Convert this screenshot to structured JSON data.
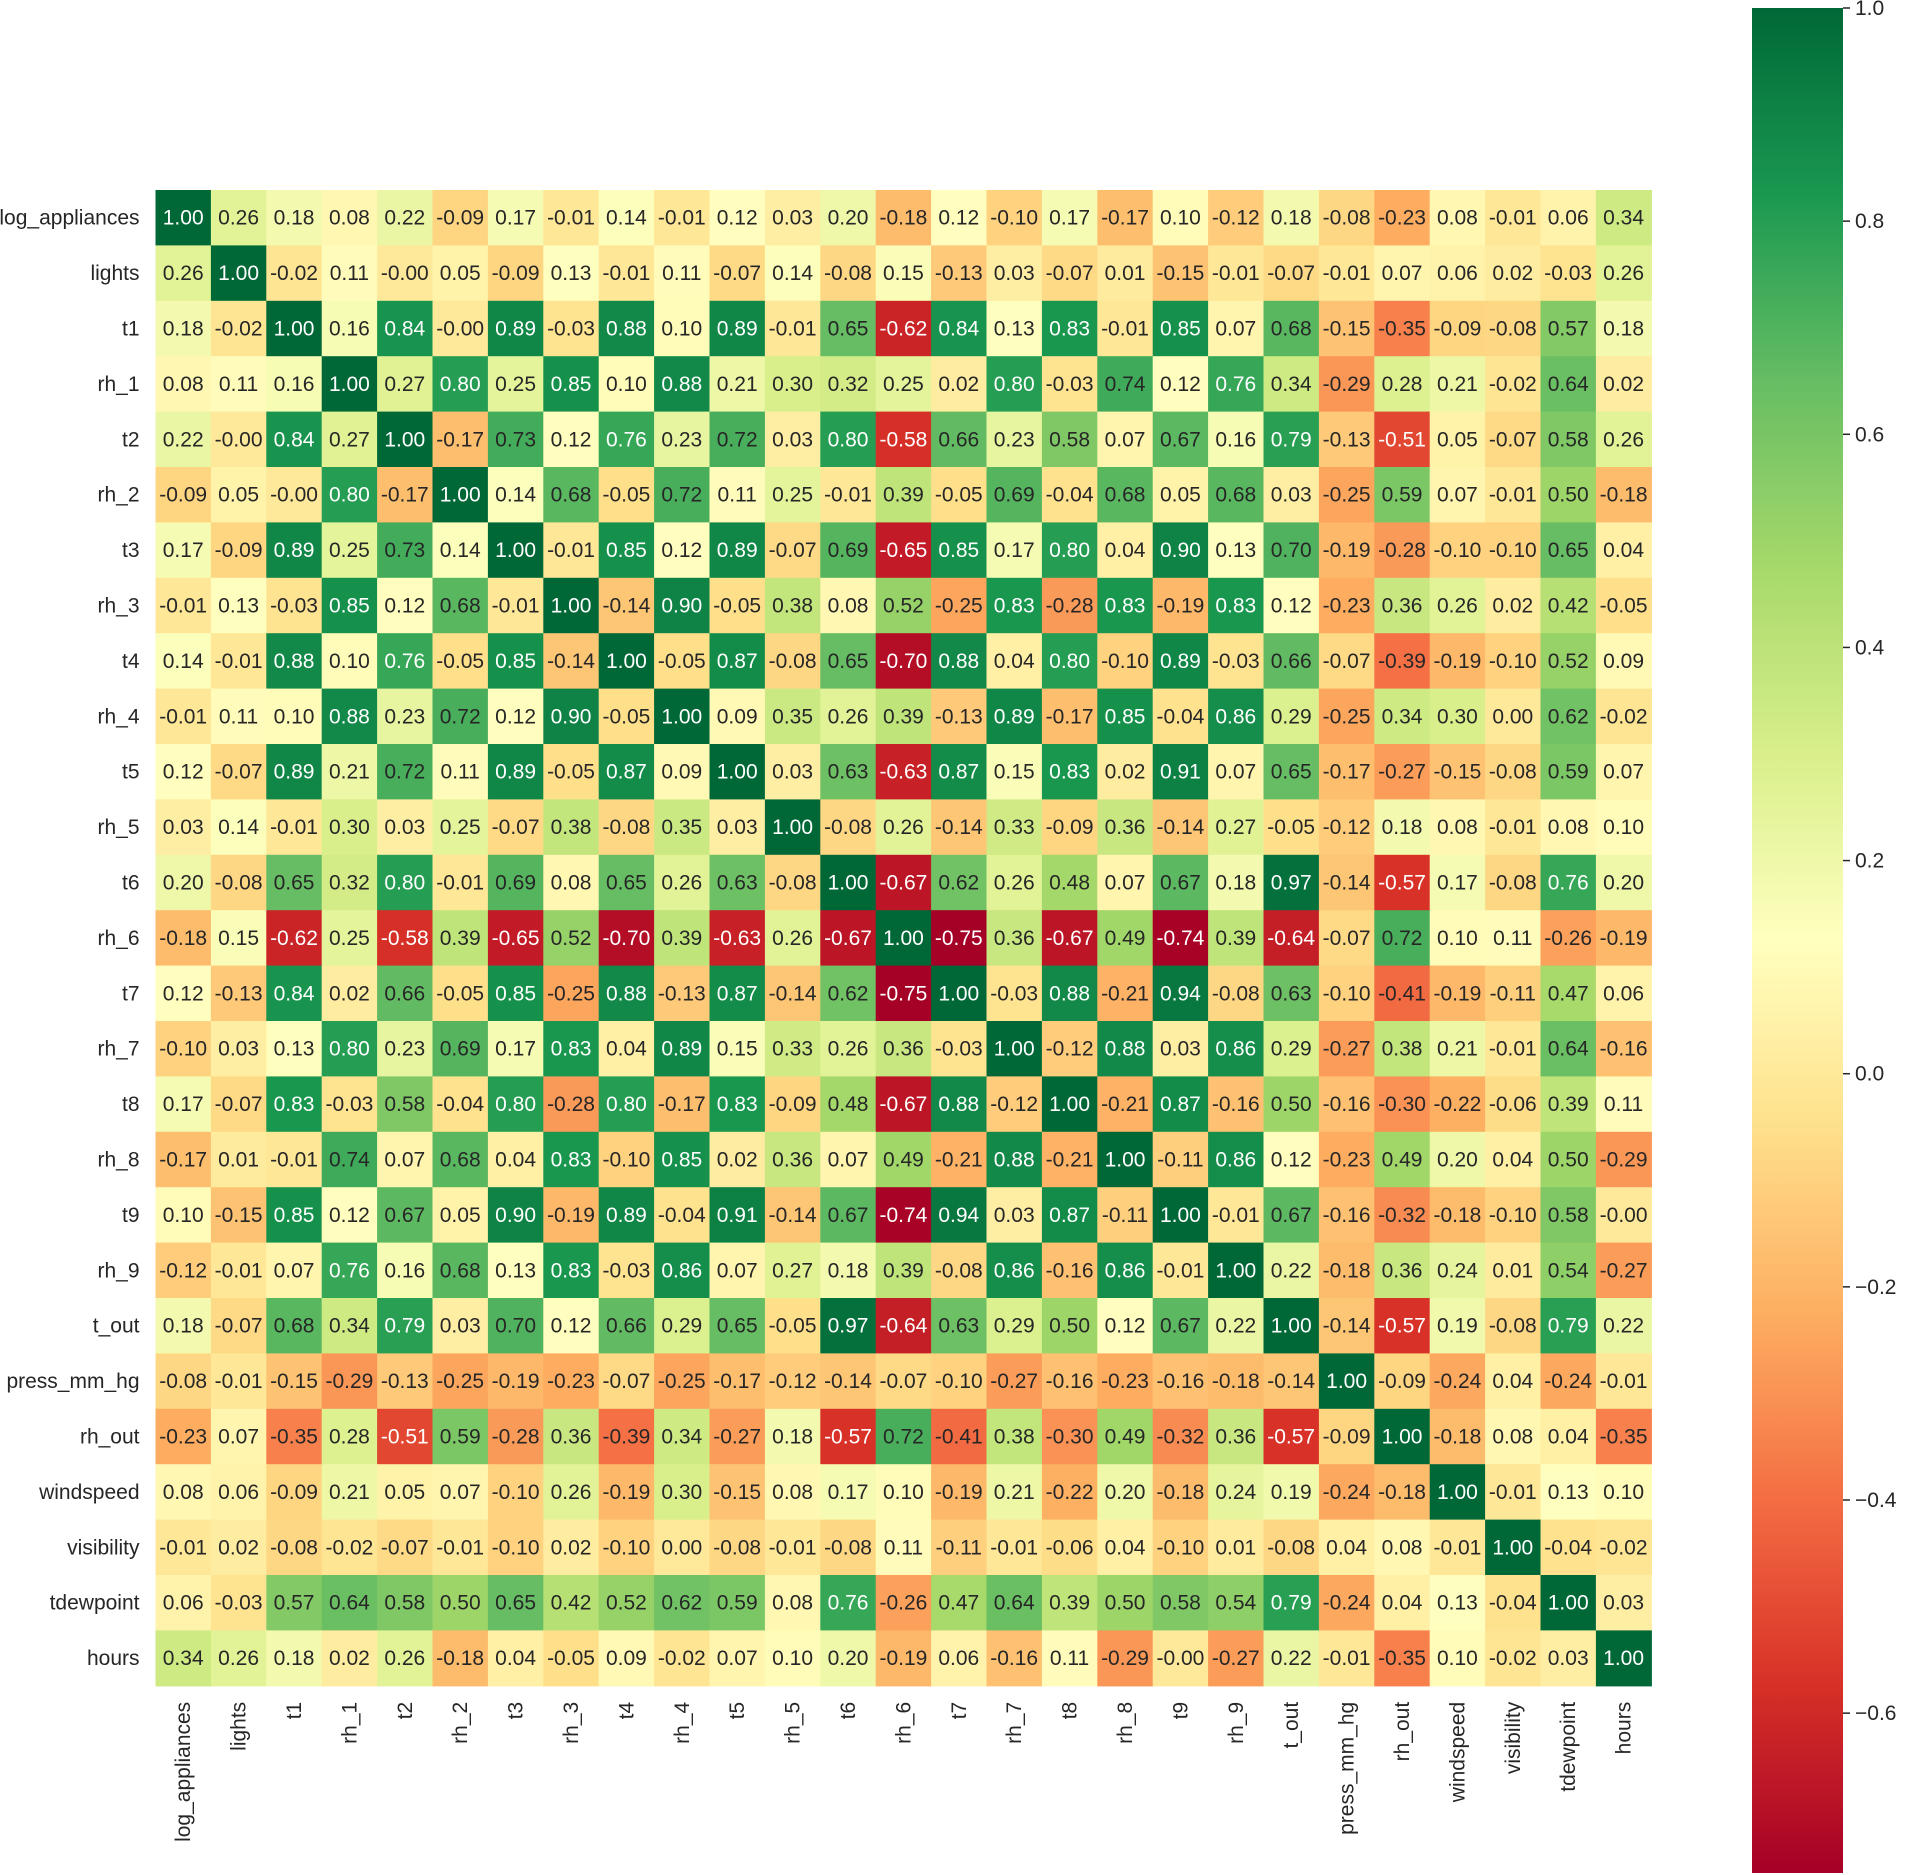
{
  "chart_data": {
    "type": "heatmap",
    "title": "",
    "labels": [
      "log_appliances",
      "lights",
      "t1",
      "rh_1",
      "t2",
      "rh_2",
      "t3",
      "rh_3",
      "t4",
      "rh_4",
      "t5",
      "rh_5",
      "t6",
      "rh_6",
      "t7",
      "rh_7",
      "t8",
      "rh_8",
      "t9",
      "rh_9",
      "t_out",
      "press_mm_hg",
      "rh_out",
      "windspeed",
      "visibility",
      "tdewpoint",
      "hours"
    ],
    "matrix": [
      [
        1.0,
        0.26,
        0.18,
        0.08,
        0.22,
        -0.09,
        0.17,
        -0.01,
        0.14,
        -0.01,
        0.12,
        0.03,
        0.2,
        -0.18,
        0.12,
        -0.1,
        0.17,
        -0.17,
        0.1,
        -0.12,
        0.18,
        -0.08,
        -0.23,
        0.08,
        -0.01,
        0.06,
        0.34
      ],
      [
        0.26,
        1.0,
        -0.02,
        0.11,
        -0.0,
        0.05,
        -0.09,
        0.13,
        -0.01,
        0.11,
        -0.07,
        0.14,
        -0.08,
        0.15,
        -0.13,
        0.03,
        -0.07,
        0.01,
        -0.15,
        -0.01,
        -0.07,
        -0.01,
        0.07,
        0.06,
        0.02,
        -0.03,
        0.26
      ],
      [
        0.18,
        -0.02,
        1.0,
        0.16,
        0.84,
        -0.0,
        0.89,
        -0.03,
        0.88,
        0.1,
        0.89,
        -0.01,
        0.65,
        -0.62,
        0.84,
        0.13,
        0.83,
        -0.01,
        0.85,
        0.07,
        0.68,
        -0.15,
        -0.35,
        -0.09,
        -0.08,
        0.57,
        0.18
      ],
      [
        0.08,
        0.11,
        0.16,
        1.0,
        0.27,
        0.8,
        0.25,
        0.85,
        0.1,
        0.88,
        0.21,
        0.3,
        0.32,
        0.25,
        0.02,
        0.8,
        -0.03,
        0.74,
        0.12,
        0.76,
        0.34,
        -0.29,
        0.28,
        0.21,
        -0.02,
        0.64,
        0.02
      ],
      [
        0.22,
        -0.0,
        0.84,
        0.27,
        1.0,
        -0.17,
        0.73,
        0.12,
        0.76,
        0.23,
        0.72,
        0.03,
        0.8,
        -0.58,
        0.66,
        0.23,
        0.58,
        0.07,
        0.67,
        0.16,
        0.79,
        -0.13,
        -0.51,
        0.05,
        -0.07,
        0.58,
        0.26
      ],
      [
        -0.09,
        0.05,
        -0.0,
        0.8,
        -0.17,
        1.0,
        0.14,
        0.68,
        -0.05,
        0.72,
        0.11,
        0.25,
        -0.01,
        0.39,
        -0.05,
        0.69,
        -0.04,
        0.68,
        0.05,
        0.68,
        0.03,
        -0.25,
        0.59,
        0.07,
        -0.01,
        0.5,
        -0.18
      ],
      [
        0.17,
        -0.09,
        0.89,
        0.25,
        0.73,
        0.14,
        1.0,
        -0.01,
        0.85,
        0.12,
        0.89,
        -0.07,
        0.69,
        -0.65,
        0.85,
        0.17,
        0.8,
        0.04,
        0.9,
        0.13,
        0.7,
        -0.19,
        -0.28,
        -0.1,
        -0.1,
        0.65,
        0.04
      ],
      [
        -0.01,
        0.13,
        -0.03,
        0.85,
        0.12,
        0.68,
        -0.01,
        1.0,
        -0.14,
        0.9,
        -0.05,
        0.38,
        0.08,
        0.52,
        -0.25,
        0.83,
        -0.28,
        0.83,
        -0.19,
        0.83,
        0.12,
        -0.23,
        0.36,
        0.26,
        0.02,
        0.42,
        -0.05
      ],
      [
        0.14,
        -0.01,
        0.88,
        0.1,
        0.76,
        -0.05,
        0.85,
        -0.14,
        1.0,
        -0.05,
        0.87,
        -0.08,
        0.65,
        -0.7,
        0.88,
        0.04,
        0.8,
        -0.1,
        0.89,
        -0.03,
        0.66,
        -0.07,
        -0.39,
        -0.19,
        -0.1,
        0.52,
        0.09
      ],
      [
        -0.01,
        0.11,
        0.1,
        0.88,
        0.23,
        0.72,
        0.12,
        0.9,
        -0.05,
        1.0,
        0.09,
        0.35,
        0.26,
        0.39,
        -0.13,
        0.89,
        -0.17,
        0.85,
        -0.04,
        0.86,
        0.29,
        -0.25,
        0.34,
        0.3,
        0.0,
        0.62,
        -0.02
      ],
      [
        0.12,
        -0.07,
        0.89,
        0.21,
        0.72,
        0.11,
        0.89,
        -0.05,
        0.87,
        0.09,
        1.0,
        0.03,
        0.63,
        -0.63,
        0.87,
        0.15,
        0.83,
        0.02,
        0.91,
        0.07,
        0.65,
        -0.17,
        -0.27,
        -0.15,
        -0.08,
        0.59,
        0.07
      ],
      [
        0.03,
        0.14,
        -0.01,
        0.3,
        0.03,
        0.25,
        -0.07,
        0.38,
        -0.08,
        0.35,
        0.03,
        1.0,
        -0.08,
        0.26,
        -0.14,
        0.33,
        -0.09,
        0.36,
        -0.14,
        0.27,
        -0.05,
        -0.12,
        0.18,
        0.08,
        -0.01,
        0.08,
        0.1
      ],
      [
        0.2,
        -0.08,
        0.65,
        0.32,
        0.8,
        -0.01,
        0.69,
        0.08,
        0.65,
        0.26,
        0.63,
        -0.08,
        1.0,
        -0.67,
        0.62,
        0.26,
        0.48,
        0.07,
        0.67,
        0.18,
        0.97,
        -0.14,
        -0.57,
        0.17,
        -0.08,
        0.76,
        0.2
      ],
      [
        -0.18,
        0.15,
        -0.62,
        0.25,
        -0.58,
        0.39,
        -0.65,
        0.52,
        -0.7,
        0.39,
        -0.63,
        0.26,
        -0.67,
        1.0,
        -0.75,
        0.36,
        -0.67,
        0.49,
        -0.74,
        0.39,
        -0.64,
        -0.07,
        0.72,
        0.1,
        0.11,
        -0.26,
        -0.19
      ],
      [
        0.12,
        -0.13,
        0.84,
        0.02,
        0.66,
        -0.05,
        0.85,
        -0.25,
        0.88,
        -0.13,
        0.87,
        -0.14,
        0.62,
        -0.75,
        1.0,
        -0.03,
        0.88,
        -0.21,
        0.94,
        -0.08,
        0.63,
        -0.1,
        -0.41,
        -0.19,
        -0.11,
        0.47,
        0.06
      ],
      [
        -0.1,
        0.03,
        0.13,
        0.8,
        0.23,
        0.69,
        0.17,
        0.83,
        0.04,
        0.89,
        0.15,
        0.33,
        0.26,
        0.36,
        -0.03,
        1.0,
        -0.12,
        0.88,
        0.03,
        0.86,
        0.29,
        -0.27,
        0.38,
        0.21,
        -0.01,
        0.64,
        -0.16
      ],
      [
        0.17,
        -0.07,
        0.83,
        -0.03,
        0.58,
        -0.04,
        0.8,
        -0.28,
        0.8,
        -0.17,
        0.83,
        -0.09,
        0.48,
        -0.67,
        0.88,
        -0.12,
        1.0,
        -0.21,
        0.87,
        -0.16,
        0.5,
        -0.16,
        -0.3,
        -0.22,
        -0.06,
        0.39,
        0.11
      ],
      [
        -0.17,
        0.01,
        -0.01,
        0.74,
        0.07,
        0.68,
        0.04,
        0.83,
        -0.1,
        0.85,
        0.02,
        0.36,
        0.07,
        0.49,
        -0.21,
        0.88,
        -0.21,
        1.0,
        -0.11,
        0.86,
        0.12,
        -0.23,
        0.49,
        0.2,
        0.04,
        0.5,
        -0.29
      ],
      [
        0.1,
        -0.15,
        0.85,
        0.12,
        0.67,
        0.05,
        0.9,
        -0.19,
        0.89,
        -0.04,
        0.91,
        -0.14,
        0.67,
        -0.74,
        0.94,
        0.03,
        0.87,
        -0.11,
        1.0,
        -0.01,
        0.67,
        -0.16,
        -0.32,
        -0.18,
        -0.1,
        0.58,
        -0.0
      ],
      [
        -0.12,
        -0.01,
        0.07,
        0.76,
        0.16,
        0.68,
        0.13,
        0.83,
        -0.03,
        0.86,
        0.07,
        0.27,
        0.18,
        0.39,
        -0.08,
        0.86,
        -0.16,
        0.86,
        -0.01,
        1.0,
        0.22,
        -0.18,
        0.36,
        0.24,
        0.01,
        0.54,
        -0.27
      ],
      [
        0.18,
        -0.07,
        0.68,
        0.34,
        0.79,
        0.03,
        0.7,
        0.12,
        0.66,
        0.29,
        0.65,
        -0.05,
        0.97,
        -0.64,
        0.63,
        0.29,
        0.5,
        0.12,
        0.67,
        0.22,
        1.0,
        -0.14,
        -0.57,
        0.19,
        -0.08,
        0.79,
        0.22
      ],
      [
        -0.08,
        -0.01,
        -0.15,
        -0.29,
        -0.13,
        -0.25,
        -0.19,
        -0.23,
        -0.07,
        -0.25,
        -0.17,
        -0.12,
        -0.14,
        -0.07,
        -0.1,
        -0.27,
        -0.16,
        -0.23,
        -0.16,
        -0.18,
        -0.14,
        1.0,
        -0.09,
        -0.24,
        0.04,
        -0.24,
        -0.01
      ],
      [
        -0.23,
        0.07,
        -0.35,
        0.28,
        -0.51,
        0.59,
        -0.28,
        0.36,
        -0.39,
        0.34,
        -0.27,
        0.18,
        -0.57,
        0.72,
        -0.41,
        0.38,
        -0.3,
        0.49,
        -0.32,
        0.36,
        -0.57,
        -0.09,
        1.0,
        -0.18,
        0.08,
        0.04,
        -0.35
      ],
      [
        0.08,
        0.06,
        -0.09,
        0.21,
        0.05,
        0.07,
        -0.1,
        0.26,
        -0.19,
        0.3,
        -0.15,
        0.08,
        0.17,
        0.1,
        -0.19,
        0.21,
        -0.22,
        0.2,
        -0.18,
        0.24,
        0.19,
        -0.24,
        -0.18,
        1.0,
        -0.01,
        0.13,
        0.1
      ],
      [
        -0.01,
        0.02,
        -0.08,
        -0.02,
        -0.07,
        -0.01,
        -0.1,
        0.02,
        -0.1,
        0.0,
        -0.08,
        -0.01,
        -0.08,
        0.11,
        -0.11,
        -0.01,
        -0.06,
        0.04,
        -0.1,
        0.01,
        -0.08,
        0.04,
        0.08,
        -0.01,
        1.0,
        -0.04,
        -0.02
      ],
      [
        0.06,
        -0.03,
        0.57,
        0.64,
        0.58,
        0.5,
        0.65,
        0.42,
        0.52,
        0.62,
        0.59,
        0.08,
        0.76,
        -0.26,
        0.47,
        0.64,
        0.39,
        0.5,
        0.58,
        0.54,
        0.79,
        -0.24,
        0.04,
        0.13,
        -0.04,
        1.0,
        0.03
      ],
      [
        0.34,
        0.26,
        0.18,
        0.02,
        0.26,
        -0.18,
        0.04,
        -0.05,
        0.09,
        -0.02,
        0.07,
        0.1,
        0.2,
        -0.19,
        0.06,
        -0.16,
        0.11,
        -0.29,
        -0.0,
        -0.27,
        0.22,
        -0.01,
        -0.35,
        0.1,
        -0.02,
        0.03,
        1.0
      ]
    ],
    "value_format": "0.00",
    "colormap": "RdYlGn",
    "vmin": -0.75,
    "vmax": 1.0,
    "colorbar": {
      "ticks": [
        1.0,
        0.8,
        0.6,
        0.4,
        0.2,
        0.0,
        -0.2,
        -0.4,
        -0.6
      ],
      "tick_labels": [
        "1.0",
        "0.8",
        "0.6",
        "0.4",
        "0.2",
        "0.0",
        "−0.2",
        "−0.4",
        "−0.6"
      ]
    },
    "colors": {
      "text_light": "#ffffff",
      "text_dark": "#262626",
      "axis_text": "#262626"
    }
  }
}
